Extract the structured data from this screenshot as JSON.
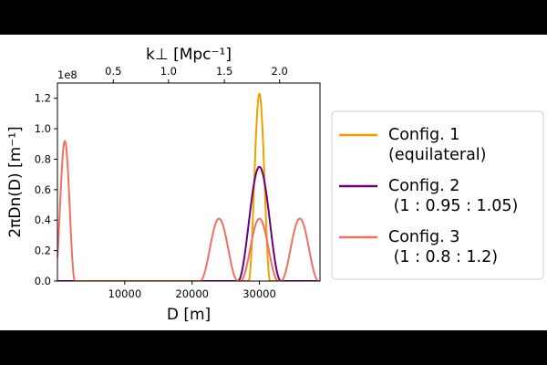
{
  "chart_data": {
    "type": "line",
    "x_axis": {
      "label": "D [m]",
      "range": [
        0,
        39000
      ],
      "ticks": [
        10000,
        20000,
        30000
      ],
      "tick_labels": [
        "10000",
        "20000",
        "30000"
      ]
    },
    "y_axis": {
      "label": "2πDn(D) [m⁻¹]",
      "range": [
        0,
        130000000.0
      ],
      "ticks": [
        0,
        20000000.0,
        40000000.0,
        60000000.0,
        80000000.0,
        100000000.0,
        120000000.0
      ],
      "tick_labels": [
        "0.0",
        "0.2",
        "0.4",
        "0.6",
        "0.8",
        "1.0",
        "1.2"
      ],
      "offset_text": "1e8"
    },
    "top_axis": {
      "label": "k⊥ [Mpc⁻¹]",
      "ticks_x": [
        8300,
        16500,
        24800,
        33000
      ],
      "tick_labels": [
        "0.5",
        "1.0",
        "1.5",
        "2.0"
      ]
    },
    "legend": {
      "placement": "right",
      "entries": [
        {
          "lines": [
            "Config. 1",
            "(equilateral)"
          ],
          "color": "#f0a000"
        },
        {
          "lines": [
            "Config. 2",
            " (1 : 0.95 : 1.05)"
          ],
          "color": "#6a0078"
        },
        {
          "lines": [
            "Config. 3",
            " (1 : 0.8 : 1.2)"
          ],
          "color": "#f07060"
        }
      ]
    },
    "series": [
      {
        "name": "Config. 1 (equilateral)",
        "color": "#f0a000",
        "peaks": [
          {
            "center": 30000,
            "height": 123000000.0,
            "halfwidth": 1600
          }
        ]
      },
      {
        "name": "Config. 2 (1 : 0.95 : 1.05)",
        "color": "#6a0078",
        "peaks": [
          {
            "center": 30000,
            "height": 75000000.0,
            "halfwidth": 3200
          }
        ]
      },
      {
        "name": "Config. 3 (1 : 0.8 : 1.2)",
        "color": "#f07060",
        "peaks": [
          {
            "center": 1100,
            "height": 92000000.0,
            "halfwidth": 1500
          },
          {
            "center": 24000,
            "height": 41000000.0,
            "halfwidth": 2800
          },
          {
            "center": 30000,
            "height": 41000000.0,
            "halfwidth": 2800
          },
          {
            "center": 36000,
            "height": 41000000.0,
            "halfwidth": 2800
          }
        ]
      }
    ]
  }
}
